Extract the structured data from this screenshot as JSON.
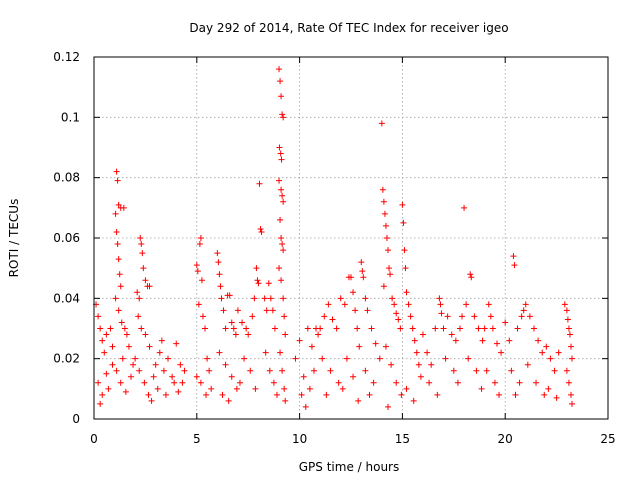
{
  "chart_data": {
    "type": "scatter",
    "title": "Day 292 of 2014, Rate Of TEC Index for receiver igeo",
    "xlabel": "GPS time / hours",
    "ylabel": "ROTI / TECUs",
    "xlim": [
      0,
      25
    ],
    "ylim": [
      0,
      0.12
    ],
    "xticks": [
      0,
      5,
      10,
      15,
      20,
      25
    ],
    "xtick_labels": [
      "0",
      "5",
      "10",
      "15",
      "20",
      "25"
    ],
    "yticks": [
      0,
      0.02,
      0.04,
      0.06,
      0.08,
      0.1,
      0.12
    ],
    "ytick_labels": [
      "0",
      "0.02",
      "0.04",
      "0.06",
      "0.08",
      "0.1",
      "0.12"
    ],
    "grid": true,
    "legend": "none",
    "marker": "plus",
    "color": "#ff0000",
    "series": [
      {
        "name": "ROTI",
        "points": [
          [
            0.1,
            0.038
          ],
          [
            0.2,
            0.034
          ],
          [
            0.3,
            0.03
          ],
          [
            0.4,
            0.026
          ],
          [
            0.5,
            0.022
          ],
          [
            0.6,
            0.028
          ],
          [
            0.8,
            0.03
          ],
          [
            0.9,
            0.024
          ],
          [
            0.2,
            0.012
          ],
          [
            0.4,
            0.008
          ],
          [
            0.6,
            0.015
          ],
          [
            0.9,
            0.018
          ],
          [
            0.3,
            0.005
          ],
          [
            0.7,
            0.01
          ],
          [
            1.1,
            0.082
          ],
          [
            1.15,
            0.079
          ],
          [
            1.2,
            0.071
          ],
          [
            1.3,
            0.07
          ],
          [
            1.45,
            0.07
          ],
          [
            1.05,
            0.068
          ],
          [
            1.1,
            0.062
          ],
          [
            1.15,
            0.058
          ],
          [
            1.2,
            0.053
          ],
          [
            1.25,
            0.048
          ],
          [
            1.3,
            0.044
          ],
          [
            1.05,
            0.04
          ],
          [
            1.2,
            0.036
          ],
          [
            1.35,
            0.032
          ],
          [
            1.5,
            0.03
          ],
          [
            1.6,
            0.028
          ],
          [
            1.7,
            0.024
          ],
          [
            1.4,
            0.02
          ],
          [
            1.1,
            0.016
          ],
          [
            1.3,
            0.012
          ],
          [
            1.55,
            0.009
          ],
          [
            1.8,
            0.014
          ],
          [
            1.9,
            0.018
          ],
          [
            2.1,
            0.042
          ],
          [
            2.2,
            0.04
          ],
          [
            2.25,
            0.06
          ],
          [
            2.3,
            0.058
          ],
          [
            2.35,
            0.055
          ],
          [
            2.4,
            0.05
          ],
          [
            2.5,
            0.046
          ],
          [
            2.6,
            0.044
          ],
          [
            2.7,
            0.044
          ],
          [
            2.15,
            0.034
          ],
          [
            2.3,
            0.03
          ],
          [
            2.5,
            0.028
          ],
          [
            2.7,
            0.024
          ],
          [
            2.0,
            0.02
          ],
          [
            2.2,
            0.016
          ],
          [
            2.45,
            0.012
          ],
          [
            2.65,
            0.008
          ],
          [
            2.8,
            0.006
          ],
          [
            2.9,
            0.014
          ],
          [
            3.0,
            0.018
          ],
          [
            3.2,
            0.022
          ],
          [
            3.4,
            0.016
          ],
          [
            3.6,
            0.02
          ],
          [
            3.8,
            0.014
          ],
          [
            3.1,
            0.01
          ],
          [
            3.5,
            0.008
          ],
          [
            3.9,
            0.012
          ],
          [
            4.0,
            0.025
          ],
          [
            4.2,
            0.018
          ],
          [
            4.4,
            0.016
          ],
          [
            4.1,
            0.009
          ],
          [
            4.3,
            0.012
          ],
          [
            3.3,
            0.026
          ],
          [
            5.0,
            0.051
          ],
          [
            5.05,
            0.049
          ],
          [
            5.15,
            0.058
          ],
          [
            5.2,
            0.06
          ],
          [
            5.25,
            0.046
          ],
          [
            5.1,
            0.038
          ],
          [
            5.3,
            0.034
          ],
          [
            5.4,
            0.03
          ],
          [
            5.5,
            0.02
          ],
          [
            5.6,
            0.016
          ],
          [
            5.2,
            0.012
          ],
          [
            5.45,
            0.008
          ],
          [
            5.7,
            0.01
          ],
          [
            5.0,
            0.014
          ],
          [
            6.0,
            0.055
          ],
          [
            6.05,
            0.052
          ],
          [
            6.1,
            0.048
          ],
          [
            6.15,
            0.044
          ],
          [
            6.2,
            0.04
          ],
          [
            6.3,
            0.036
          ],
          [
            6.4,
            0.03
          ],
          [
            6.5,
            0.041
          ],
          [
            6.6,
            0.041
          ],
          [
            6.7,
            0.032
          ],
          [
            6.8,
            0.03
          ],
          [
            6.9,
            0.028
          ],
          [
            6.1,
            0.022
          ],
          [
            6.4,
            0.018
          ],
          [
            6.7,
            0.014
          ],
          [
            6.95,
            0.01
          ],
          [
            6.25,
            0.008
          ],
          [
            6.55,
            0.006
          ],
          [
            7.0,
            0.036
          ],
          [
            7.2,
            0.032
          ],
          [
            7.4,
            0.03
          ],
          [
            7.5,
            0.028
          ],
          [
            7.7,
            0.034
          ],
          [
            7.9,
            0.05
          ],
          [
            7.95,
            0.046
          ],
          [
            8.0,
            0.045
          ],
          [
            7.8,
            0.04
          ],
          [
            7.3,
            0.02
          ],
          [
            7.6,
            0.016
          ],
          [
            7.1,
            0.012
          ],
          [
            7.85,
            0.01
          ],
          [
            8.05,
            0.078
          ],
          [
            8.1,
            0.063
          ],
          [
            8.15,
            0.062
          ],
          [
            8.3,
            0.04
          ],
          [
            8.4,
            0.036
          ],
          [
            8.5,
            0.045
          ],
          [
            8.6,
            0.04
          ],
          [
            8.7,
            0.036
          ],
          [
            8.8,
            0.03
          ],
          [
            8.35,
            0.022
          ],
          [
            8.55,
            0.016
          ],
          [
            8.75,
            0.012
          ],
          [
            8.9,
            0.008
          ],
          [
            9.0,
            0.116
          ],
          [
            9.05,
            0.112
          ],
          [
            9.1,
            0.107
          ],
          [
            9.15,
            0.101
          ],
          [
            9.2,
            0.1
          ],
          [
            9.02,
            0.09
          ],
          [
            9.08,
            0.088
          ],
          [
            9.12,
            0.086
          ],
          [
            9.0,
            0.079
          ],
          [
            9.1,
            0.076
          ],
          [
            9.15,
            0.074
          ],
          [
            9.2,
            0.072
          ],
          [
            9.05,
            0.066
          ],
          [
            9.1,
            0.06
          ],
          [
            9.15,
            0.058
          ],
          [
            9.2,
            0.056
          ],
          [
            9.0,
            0.05
          ],
          [
            9.1,
            0.046
          ],
          [
            9.2,
            0.04
          ],
          [
            9.25,
            0.034
          ],
          [
            9.3,
            0.028
          ],
          [
            9.05,
            0.022
          ],
          [
            9.15,
            0.016
          ],
          [
            9.25,
            0.01
          ],
          [
            9.3,
            0.006
          ],
          [
            9.8,
            0.02
          ],
          [
            10.0,
            0.026
          ],
          [
            10.2,
            0.014
          ],
          [
            10.4,
            0.03
          ],
          [
            10.6,
            0.024
          ],
          [
            10.8,
            0.03
          ],
          [
            10.9,
            0.028
          ],
          [
            10.1,
            0.008
          ],
          [
            10.3,
            0.004
          ],
          [
            10.5,
            0.01
          ],
          [
            10.7,
            0.016
          ],
          [
            11.0,
            0.03
          ],
          [
            11.2,
            0.034
          ],
          [
            11.4,
            0.038
          ],
          [
            11.6,
            0.033
          ],
          [
            11.8,
            0.03
          ],
          [
            11.1,
            0.02
          ],
          [
            11.5,
            0.016
          ],
          [
            11.9,
            0.012
          ],
          [
            11.3,
            0.008
          ],
          [
            12.0,
            0.04
          ],
          [
            12.2,
            0.038
          ],
          [
            12.4,
            0.047
          ],
          [
            12.5,
            0.047
          ],
          [
            12.6,
            0.042
          ],
          [
            12.7,
            0.036
          ],
          [
            12.8,
            0.03
          ],
          [
            12.9,
            0.024
          ],
          [
            12.3,
            0.02
          ],
          [
            12.6,
            0.014
          ],
          [
            12.1,
            0.01
          ],
          [
            12.85,
            0.006
          ],
          [
            13.0,
            0.052
          ],
          [
            13.05,
            0.049
          ],
          [
            13.1,
            0.047
          ],
          [
            13.2,
            0.04
          ],
          [
            13.3,
            0.036
          ],
          [
            13.5,
            0.03
          ],
          [
            13.7,
            0.025
          ],
          [
            13.9,
            0.02
          ],
          [
            13.2,
            0.016
          ],
          [
            13.6,
            0.012
          ],
          [
            13.4,
            0.008
          ],
          [
            14.0,
            0.098
          ],
          [
            14.05,
            0.076
          ],
          [
            14.1,
            0.072
          ],
          [
            14.15,
            0.068
          ],
          [
            14.2,
            0.064
          ],
          [
            14.25,
            0.06
          ],
          [
            14.3,
            0.056
          ],
          [
            14.35,
            0.05
          ],
          [
            14.4,
            0.048
          ],
          [
            14.1,
            0.044
          ],
          [
            14.5,
            0.04
          ],
          [
            14.6,
            0.038
          ],
          [
            14.7,
            0.035
          ],
          [
            14.8,
            0.033
          ],
          [
            14.9,
            0.03
          ],
          [
            14.2,
            0.024
          ],
          [
            14.45,
            0.018
          ],
          [
            14.7,
            0.012
          ],
          [
            14.95,
            0.008
          ],
          [
            14.3,
            0.004
          ],
          [
            15.0,
            0.071
          ],
          [
            15.05,
            0.065
          ],
          [
            15.1,
            0.056
          ],
          [
            15.15,
            0.05
          ],
          [
            15.2,
            0.042
          ],
          [
            15.3,
            0.038
          ],
          [
            15.4,
            0.034
          ],
          [
            15.5,
            0.03
          ],
          [
            15.6,
            0.026
          ],
          [
            15.7,
            0.022
          ],
          [
            15.8,
            0.018
          ],
          [
            15.9,
            0.014
          ],
          [
            15.2,
            0.01
          ],
          [
            15.55,
            0.006
          ],
          [
            16.0,
            0.028
          ],
          [
            16.2,
            0.022
          ],
          [
            16.4,
            0.018
          ],
          [
            16.6,
            0.03
          ],
          [
            16.8,
            0.04
          ],
          [
            16.85,
            0.038
          ],
          [
            16.9,
            0.035
          ],
          [
            16.3,
            0.012
          ],
          [
            16.7,
            0.008
          ],
          [
            17.0,
            0.03
          ],
          [
            17.2,
            0.034
          ],
          [
            17.4,
            0.028
          ],
          [
            17.6,
            0.026
          ],
          [
            17.8,
            0.03
          ],
          [
            17.9,
            0.034
          ],
          [
            17.1,
            0.02
          ],
          [
            17.5,
            0.016
          ],
          [
            17.7,
            0.012
          ],
          [
            18.0,
            0.07
          ],
          [
            18.3,
            0.048
          ],
          [
            18.35,
            0.047
          ],
          [
            18.1,
            0.038
          ],
          [
            18.5,
            0.034
          ],
          [
            18.7,
            0.03
          ],
          [
            18.9,
            0.026
          ],
          [
            18.2,
            0.02
          ],
          [
            18.6,
            0.016
          ],
          [
            18.85,
            0.01
          ],
          [
            19.0,
            0.03
          ],
          [
            19.2,
            0.038
          ],
          [
            19.3,
            0.034
          ],
          [
            19.4,
            0.03
          ],
          [
            19.6,
            0.025
          ],
          [
            19.8,
            0.022
          ],
          [
            19.1,
            0.016
          ],
          [
            19.5,
            0.012
          ],
          [
            19.7,
            0.008
          ],
          [
            20.0,
            0.032
          ],
          [
            20.2,
            0.026
          ],
          [
            20.4,
            0.054
          ],
          [
            20.45,
            0.051
          ],
          [
            20.6,
            0.03
          ],
          [
            20.8,
            0.034
          ],
          [
            20.9,
            0.036
          ],
          [
            20.3,
            0.016
          ],
          [
            20.7,
            0.012
          ],
          [
            20.5,
            0.008
          ],
          [
            21.0,
            0.038
          ],
          [
            21.2,
            0.034
          ],
          [
            21.4,
            0.03
          ],
          [
            21.6,
            0.026
          ],
          [
            21.8,
            0.022
          ],
          [
            21.1,
            0.018
          ],
          [
            21.5,
            0.012
          ],
          [
            21.9,
            0.008
          ],
          [
            22.0,
            0.024
          ],
          [
            22.2,
            0.02
          ],
          [
            22.4,
            0.016
          ],
          [
            22.6,
            0.022
          ],
          [
            22.1,
            0.01
          ],
          [
            22.5,
            0.007
          ],
          [
            22.9,
            0.038
          ],
          [
            23.0,
            0.036
          ],
          [
            23.05,
            0.033
          ],
          [
            23.1,
            0.03
          ],
          [
            23.15,
            0.028
          ],
          [
            23.2,
            0.024
          ],
          [
            23.25,
            0.02
          ],
          [
            23.0,
            0.016
          ],
          [
            23.1,
            0.012
          ],
          [
            23.2,
            0.008
          ],
          [
            23.25,
            0.005
          ]
        ]
      }
    ]
  }
}
